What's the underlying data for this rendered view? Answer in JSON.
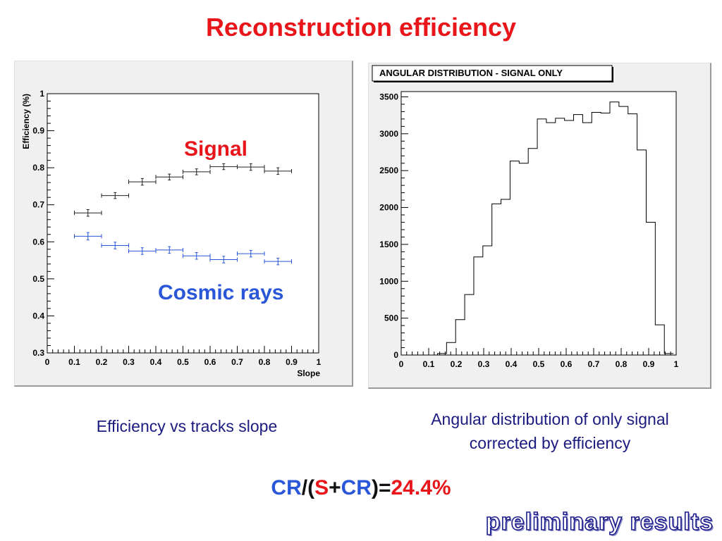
{
  "title": "Reconstruction efficiency",
  "left_caption": "Efficiency vs tracks slope",
  "right_caption_line1": "Angular distribution of only signal",
  "right_caption_line2": "corrected by efficiency",
  "ratio": {
    "cr": "CR",
    "slash_open": "/(",
    "s": "S",
    "plus": "+",
    "cr2": "CR",
    "close_eq": ")=",
    "value": "24.4%"
  },
  "watermark": "preliminary results",
  "colors": {
    "title": "#e8151b",
    "signal": "#e8151b",
    "cosmic": "#2a56d8",
    "caption": "#1b1b80"
  },
  "chart_data": [
    {
      "type": "scatter",
      "title": "",
      "xlabel": "Slope",
      "ylabel": "Efficiency (%)",
      "xlim": [
        0,
        1
      ],
      "ylim": [
        0.3,
        1
      ],
      "x_ticks": [
        "0",
        "0.1",
        "0.2",
        "0.3",
        "0.4",
        "0.5",
        "0.6",
        "0.7",
        "0.8",
        "0.9",
        "1"
      ],
      "y_ticks": [
        "0.3",
        "0.4",
        "0.5",
        "0.6",
        "0.7",
        "0.8",
        "0.9",
        "1"
      ],
      "annotations": {
        "signal": "Signal",
        "cosmic": "Cosmic rays"
      },
      "series": [
        {
          "name": "Signal",
          "color": "#222222",
          "x": [
            0.15,
            0.25,
            0.35,
            0.45,
            0.55,
            0.65,
            0.75,
            0.85
          ],
          "values": [
            0.678,
            0.725,
            0.762,
            0.775,
            0.789,
            0.803,
            0.802,
            0.791
          ],
          "xerr": 0.05,
          "yerr": [
            0.009,
            0.008,
            0.009,
            0.008,
            0.008,
            0.008,
            0.009,
            0.009
          ]
        },
        {
          "name": "Cosmic rays",
          "color": "#2a56d8",
          "x": [
            0.15,
            0.25,
            0.35,
            0.45,
            0.55,
            0.65,
            0.75,
            0.85
          ],
          "values": [
            0.615,
            0.59,
            0.575,
            0.578,
            0.562,
            0.552,
            0.568,
            0.547
          ],
          "xerr": 0.05,
          "yerr": [
            0.01,
            0.009,
            0.009,
            0.009,
            0.009,
            0.009,
            0.009,
            0.009
          ]
        }
      ]
    },
    {
      "type": "bar",
      "title": "ANGULAR DISTRIBUTION - SIGNAL ONLY",
      "xlabel": "",
      "ylabel": "",
      "xlim": [
        0,
        1
      ],
      "ylim": [
        0,
        3500
      ],
      "x_ticks": [
        "0",
        "0.1",
        "0.2",
        "0.3",
        "0.4",
        "0.5",
        "0.6",
        "0.7",
        "0.8",
        "0.9",
        "1"
      ],
      "y_ticks": [
        "0",
        "500",
        "1000",
        "1500",
        "2000",
        "2500",
        "3000",
        "3500"
      ],
      "bin_width": 0.033,
      "bin_start": 0.0,
      "values": [
        0,
        0,
        0,
        0,
        20,
        170,
        480,
        820,
        1330,
        1480,
        2050,
        2110,
        2630,
        2600,
        2800,
        3200,
        3150,
        3210,
        3180,
        3260,
        3150,
        3290,
        3280,
        3430,
        3370,
        3270,
        2780,
        1800,
        410,
        20
      ]
    }
  ]
}
